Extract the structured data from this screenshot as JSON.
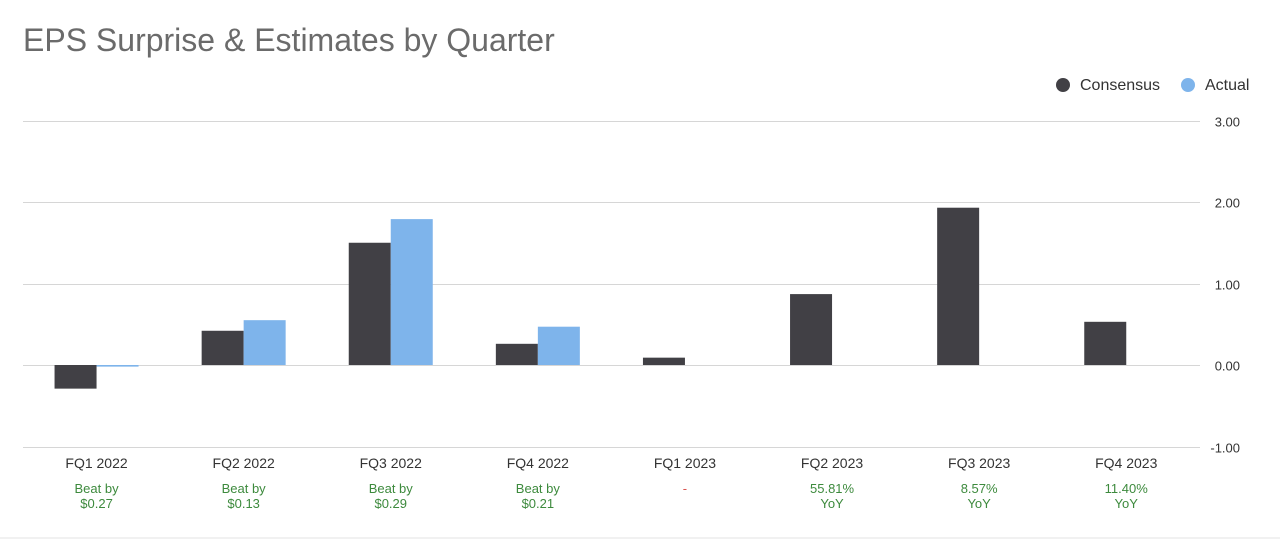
{
  "chart_data": {
    "type": "bar",
    "title": "EPS Surprise & Estimates by Quarter",
    "categories": [
      "FQ1 2022",
      "FQ2 2022",
      "FQ3 2022",
      "FQ4 2022",
      "FQ1 2023",
      "FQ2 2023",
      "FQ3 2023",
      "FQ4 2023"
    ],
    "series": [
      {
        "name": "Consensus",
        "color": "#414045",
        "values": [
          -0.29,
          0.42,
          1.5,
          0.26,
          0.09,
          0.87,
          1.93,
          0.53
        ]
      },
      {
        "name": "Actual",
        "color": "#7eb4eb",
        "values": [
          -0.02,
          0.55,
          1.79,
          0.47,
          null,
          null,
          null,
          null
        ]
      }
    ],
    "annotations": [
      {
        "line1": "Beat by",
        "line2": "$0.27",
        "color": "#3d8a3d"
      },
      {
        "line1": "Beat by",
        "line2": "$0.13",
        "color": "#3d8a3d"
      },
      {
        "line1": "Beat by",
        "line2": "$0.29",
        "color": "#3d8a3d"
      },
      {
        "line1": "Beat by",
        "line2": "$0.21",
        "color": "#3d8a3d"
      },
      {
        "line1": "-",
        "line2": "",
        "color": "#d9534f"
      },
      {
        "line1": "55.81%",
        "line2": "YoY",
        "color": "#3d8a3d"
      },
      {
        "line1": "8.57%",
        "line2": "YoY",
        "color": "#3d8a3d"
      },
      {
        "line1": "11.40%",
        "line2": "YoY",
        "color": "#3d8a3d"
      }
    ],
    "yticks": [
      {
        "value": 3,
        "label": "3.00"
      },
      {
        "value": 2,
        "label": "2.00"
      },
      {
        "value": 1,
        "label": "1.00"
      },
      {
        "value": 0,
        "label": "0.00"
      },
      {
        "value": -1,
        "label": "-1.00"
      }
    ],
    "ylim": [
      -1,
      3
    ],
    "y_axis_side": "right",
    "grid": true,
    "legend_position": "top-right"
  }
}
